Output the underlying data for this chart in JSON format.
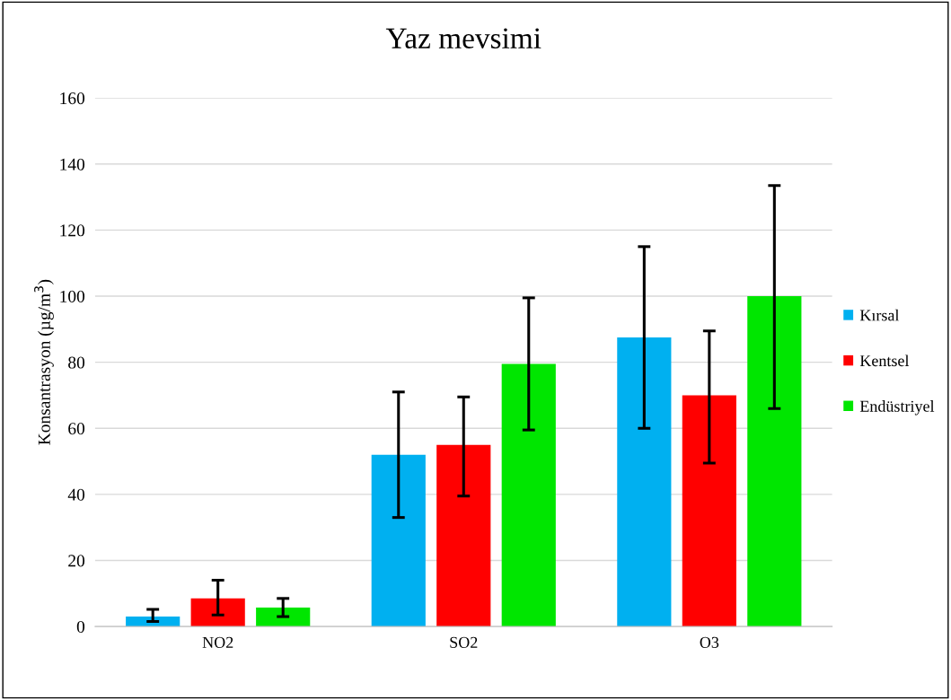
{
  "chart_data": {
    "type": "bar",
    "title": "Yaz mevsimi",
    "ylabel": "Konsantrasyon (µg/m$^{3}$)",
    "categories": [
      "NO2",
      "SO2",
      "O3"
    ],
    "series": [
      {
        "name": "Kırsal",
        "color": "#00b0f0",
        "values": [
          3.0,
          52,
          87.5
        ],
        "errors": [
          [
            1.5,
            5.2
          ],
          [
            33,
            71
          ],
          [
            60,
            115
          ]
        ]
      },
      {
        "name": "Kentsel",
        "color": "#ff0000",
        "values": [
          8.5,
          55,
          70
        ],
        "errors": [
          [
            3.5,
            14
          ],
          [
            39.5,
            69.5
          ],
          [
            49.5,
            89.5
          ]
        ]
      },
      {
        "name": "Endüstriyel",
        "color": "#00e600",
        "values": [
          5.7,
          79.5,
          100
        ],
        "errors": [
          [
            3,
            8.5
          ],
          [
            59.5,
            99.5
          ],
          [
            66,
            133.5
          ]
        ]
      }
    ],
    "ylim": [
      0,
      160
    ],
    "yticks": [
      0,
      20,
      40,
      60,
      80,
      100,
      120,
      140,
      160
    ],
    "grid": "y",
    "legend": "right"
  }
}
